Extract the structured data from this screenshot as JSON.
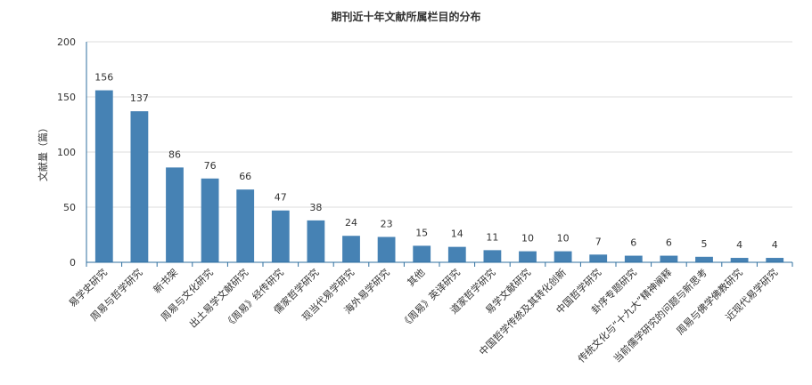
{
  "chart_data": {
    "type": "bar",
    "title": "期刊近十年文献所属栏目的分布",
    "ylabel": "文献量（篇）",
    "xlabel": "",
    "ylim": [
      0,
      200
    ],
    "yticks": [
      0,
      50,
      100,
      150,
      200
    ],
    "grid": true,
    "legend": "none",
    "bar_color": "#4682b4",
    "categories": [
      "易学史研究",
      "周易与哲学研究",
      "新书架",
      "周易与文化研究",
      "出土易学文献研究",
      "《周易》经传研究",
      "儒家哲学研究",
      "现当代易学研究",
      "海外易学研究",
      "其他",
      "《周易》英译研究",
      "道家哲学研究",
      "易学文献研究",
      "中国哲学传统及其转化创新",
      "中国哲学研究",
      "卦序专题研究",
      "传统文化与“十九大”精神阐释",
      "当前儒学研究的问题与新思考",
      "周易与佛学佛教研究",
      "近现代易学研究"
    ],
    "values": [
      156,
      137,
      86,
      76,
      66,
      47,
      38,
      24,
      23,
      15,
      14,
      11,
      10,
      10,
      7,
      6,
      6,
      5,
      4,
      4
    ]
  }
}
